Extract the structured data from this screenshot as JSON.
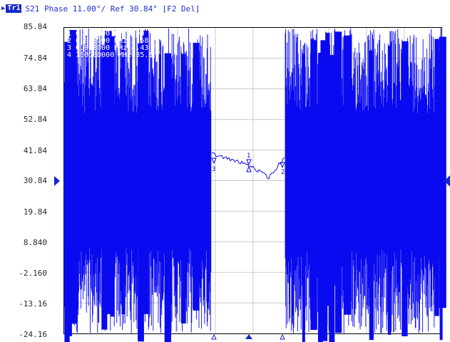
{
  "header": {
    "trace_badge": "Tr1",
    "trace_text": "S21 Phase 11.00°/ Ref 30.84° [F2 Del]"
  },
  "y_axis": {
    "labels": [
      "85.84",
      "74.84",
      "63.84",
      "52.84",
      "41.84",
      "30.84",
      "19.84",
      "8.840",
      "-2.160",
      "-13.16",
      "-24.16"
    ],
    "reference_value": "30.84"
  },
  "markers": {
    "table_lines": [
      "1  0.000000 Hz  0.00 °",
      "2  0.000000 MHz 3.58 °",
      "3  0.000000 MHz 4.43 °",
      "4  160.00000 MHz 35.8 °"
    ],
    "labels": [
      "1",
      "2",
      "3"
    ],
    "right_edge_label": "1"
  },
  "colors": {
    "trace": "#0a0af0",
    "grid": "#c8c8c8",
    "axis": "#000000",
    "text": "#1f2fd0",
    "reference_arrow": "#1428c8"
  }
}
